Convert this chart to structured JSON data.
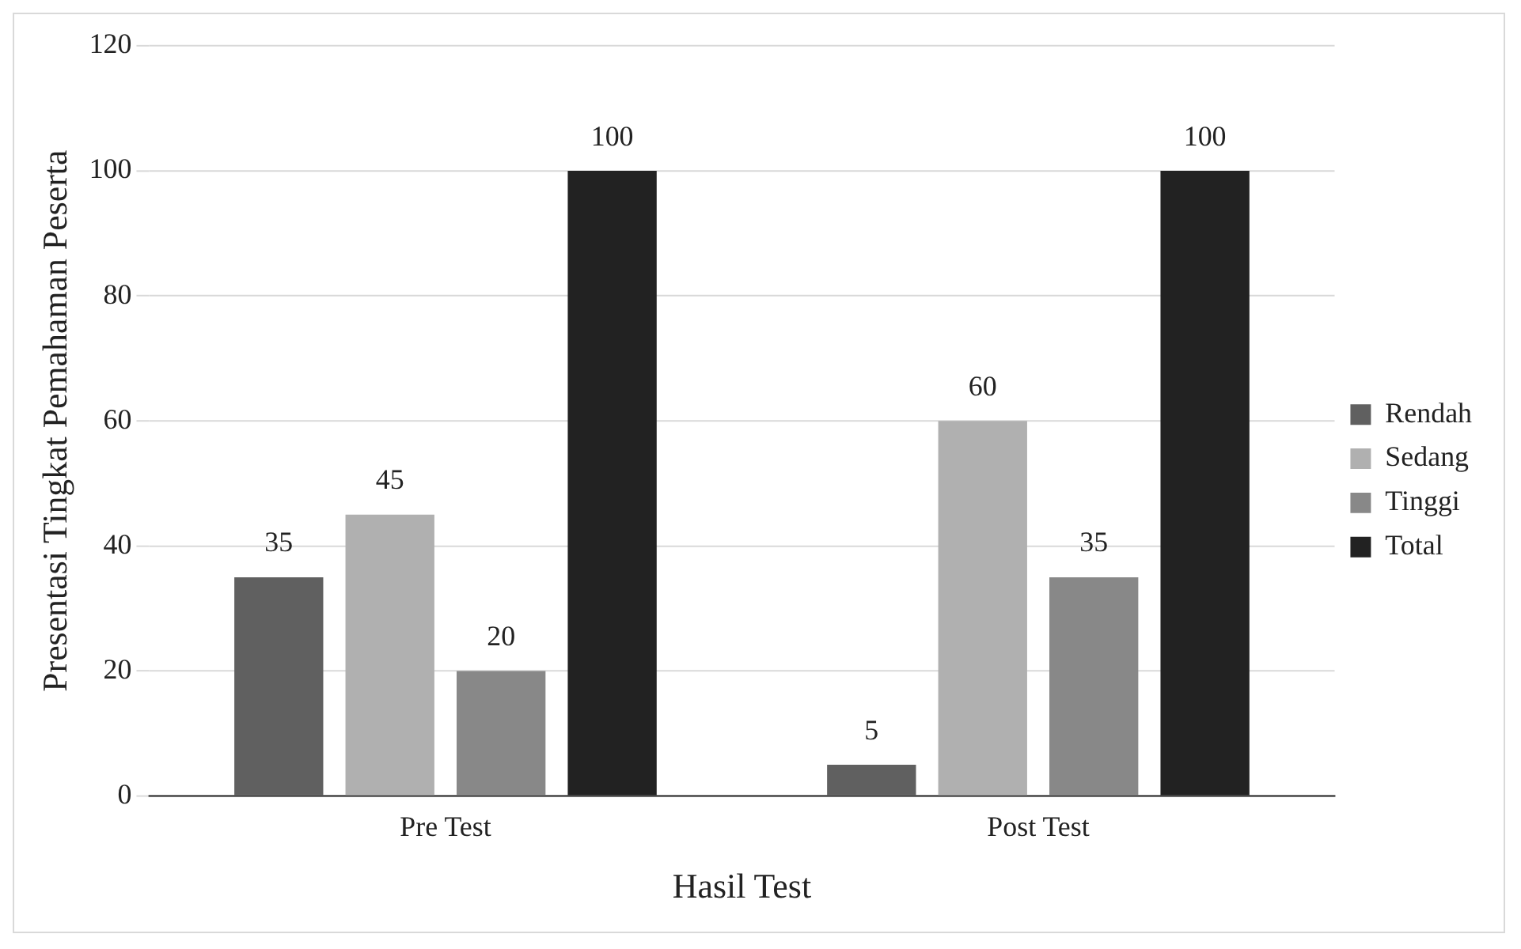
{
  "chart_data": {
    "type": "bar",
    "xlabel": "Hasil Test",
    "ylabel": "Presentasi Tingkat Pemahaman Peserta",
    "categories": [
      "Pre Test",
      "Post Test"
    ],
    "series": [
      {
        "name": "Rendah",
        "color": "#606060",
        "values": [
          35,
          5
        ]
      },
      {
        "name": "Sedang",
        "color": "#b0b0b0",
        "values": [
          45,
          60
        ]
      },
      {
        "name": "Tinggi",
        "color": "#888888",
        "values": [
          20,
          35
        ]
      },
      {
        "name": "Total",
        "color": "#222222",
        "values": [
          100,
          100
        ]
      }
    ],
    "ylim": [
      0,
      120
    ],
    "yticks": [
      0,
      20,
      40,
      60,
      80,
      100,
      120
    ],
    "grid": "y",
    "legend": "right",
    "data_labels": true
  }
}
